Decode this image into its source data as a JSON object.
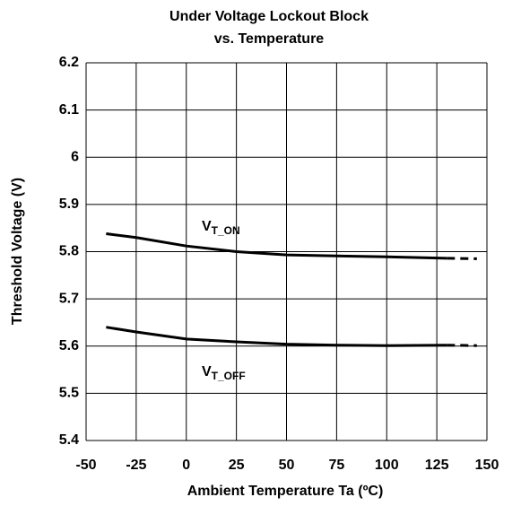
{
  "chart_data": {
    "type": "line",
    "title": [
      "Under Voltage Lockout Block",
      "vs. Temperature"
    ],
    "xlabel": "Ambient Temperature  Ta (ºC)",
    "ylabel": "Threshold Voltage  (V)",
    "xlim": [
      -50,
      150
    ],
    "xticks": [
      -50,
      -25,
      0,
      25,
      50,
      75,
      100,
      125,
      150
    ],
    "ylim": [
      5.4,
      6.2
    ],
    "yticks": [
      5.4,
      5.5,
      5.6,
      5.7,
      5.8,
      5.9,
      6,
      6.1,
      6.2
    ],
    "grid": true,
    "series": [
      {
        "color": "#000000",
        "dash": false,
        "x": [
          -40,
          -25,
          0,
          25,
          50,
          75,
          100,
          130
        ],
        "values": [
          5.838,
          5.83,
          5.812,
          5.8,
          5.793,
          5.791,
          5.789,
          5.786
        ]
      },
      {
        "color": "#000000",
        "dash": true,
        "x": [
          130,
          145
        ],
        "values": [
          5.786,
          5.785
        ]
      },
      {
        "color": "#000000",
        "dash": false,
        "x": [
          -40,
          -25,
          0,
          25,
          50,
          75,
          100,
          130
        ],
        "values": [
          5.64,
          5.63,
          5.615,
          5.609,
          5.604,
          5.602,
          5.601,
          5.602
        ]
      },
      {
        "color": "#000000",
        "dash": true,
        "x": [
          130,
          145
        ],
        "values": [
          5.602,
          5.601
        ]
      }
    ],
    "annotations": [
      {
        "text": "V",
        "subscript": "T_ON"
      },
      {
        "text": "V",
        "subscript": "T_OFF"
      }
    ]
  }
}
